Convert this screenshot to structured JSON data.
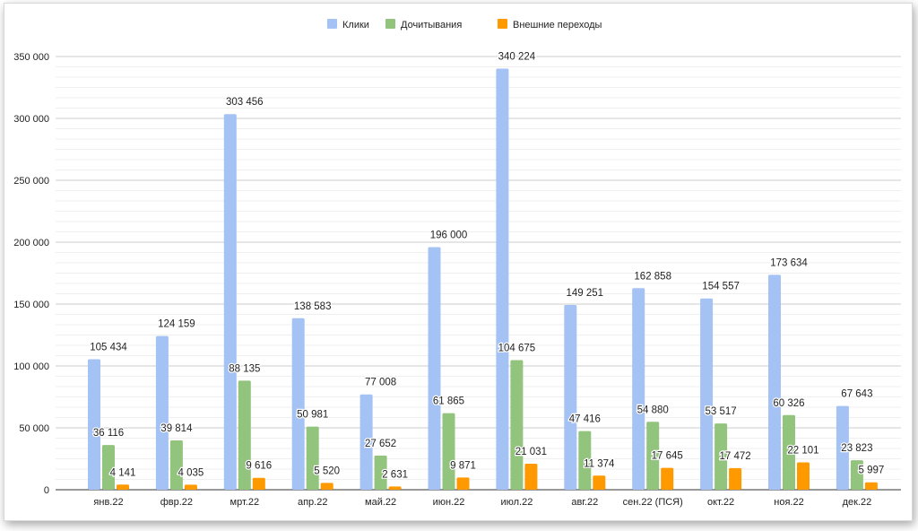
{
  "chart_data": {
    "type": "bar",
    "title": "",
    "xlabel": "",
    "ylabel": "",
    "ylim": [
      0,
      350000
    ],
    "yticks": [
      0,
      50000,
      100000,
      150000,
      200000,
      250000,
      300000,
      350000
    ],
    "ytick_labels": [
      "0",
      "50 000",
      "100 000",
      "150 000",
      "200 000",
      "250 000",
      "300 000",
      "350 000"
    ],
    "grid": true,
    "legend_position": "top-center",
    "categories": [
      "янв.22",
      "фвр.22",
      "мрт.22",
      "апр.22",
      "май.22",
      "июн.22",
      "июл.22",
      "авг.22",
      "сен.22 (ПСЯ)",
      "окт.22",
      "ноя.22",
      "дек.22"
    ],
    "series": [
      {
        "name": "Клики",
        "color": "#a4c2f4",
        "values": [
          105434,
          124159,
          303456,
          138583,
          77008,
          196000,
          340224,
          149251,
          162858,
          154557,
          173634,
          67643
        ],
        "labels": [
          "105 434",
          "124 159",
          "303 456",
          "138 583",
          "77 008",
          "196 000",
          "340 224",
          "149 251",
          "162 858",
          "154 557",
          "173 634",
          "67 643"
        ]
      },
      {
        "name": "Дочитывания",
        "color": "#93c47d",
        "values": [
          36116,
          39814,
          88135,
          50981,
          27652,
          61865,
          104675,
          47416,
          54880,
          53517,
          60326,
          23823
        ],
        "labels": [
          "36 116",
          "39 814",
          "88 135",
          "50 981",
          "27 652",
          "61 865",
          "104 675",
          "47 416",
          "54 880",
          "53 517",
          "60 326",
          "23 823"
        ]
      },
      {
        "name": "Внешние переходы",
        "color": "#ff9900",
        "values": [
          4141,
          4035,
          9616,
          5520,
          2631,
          9871,
          21031,
          11374,
          17645,
          17472,
          22101,
          5997
        ],
        "labels": [
          "4 141",
          "4 035",
          "9 616",
          "5 520",
          "2 631",
          "9 871",
          "21 031",
          "11 374",
          "17 645",
          "17 472",
          "22 101",
          "5 997"
        ]
      }
    ]
  }
}
